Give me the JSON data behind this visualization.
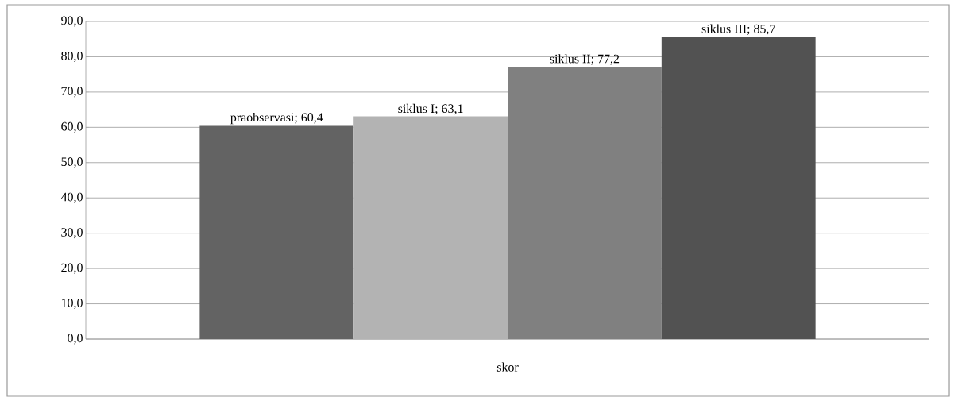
{
  "chart_data": {
    "type": "bar",
    "categories": [
      "skor"
    ],
    "series": [
      {
        "color": "#636363",
        "values": [
          60.4
        ],
        "value_labels": [
          "praobservasi; 60,4"
        ]
      },
      {
        "color": "#b3b3b3",
        "values": [
          63.1
        ],
        "value_labels": [
          "siklus I; 63,1"
        ]
      },
      {
        "color": "#808080",
        "values": [
          77.2
        ],
        "value_labels": [
          "siklus II; 77,2"
        ]
      },
      {
        "color": "#525252",
        "values": [
          85.7
        ],
        "value_labels": [
          "siklus III; 85,7"
        ]
      }
    ],
    "ylim": [
      0,
      90
    ],
    "yticks": [
      {
        "value": 0,
        "label": "0,0"
      },
      {
        "value": 10,
        "label": "10,0"
      },
      {
        "value": 20,
        "label": "20,0"
      },
      {
        "value": 30,
        "label": "30,0"
      },
      {
        "value": 40,
        "label": "40,0"
      },
      {
        "value": 50,
        "label": "50,0"
      },
      {
        "value": 60,
        "label": "60,0"
      },
      {
        "value": 70,
        "label": "70,0"
      },
      {
        "value": 80,
        "label": "80,0"
      },
      {
        "value": 90,
        "label": "90,0"
      }
    ],
    "grid": "y"
  }
}
